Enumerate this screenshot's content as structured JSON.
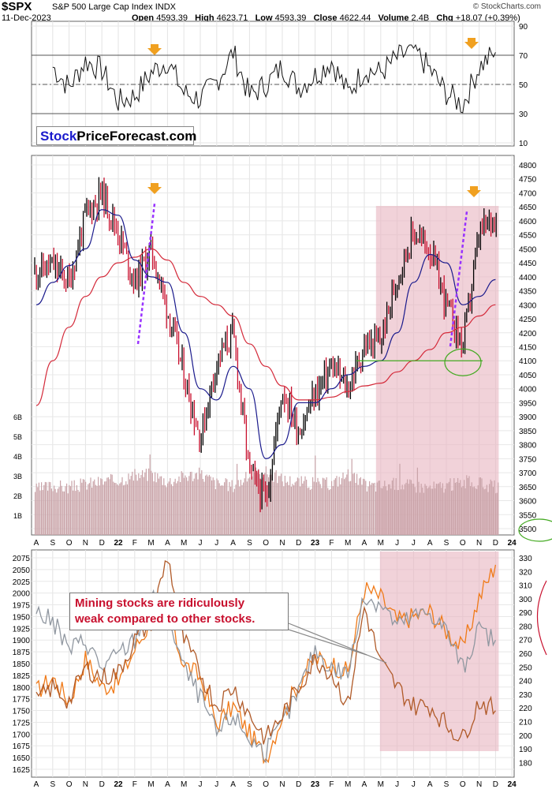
{
  "header": {
    "ticker": "$SPX",
    "name": "S&P 500 Large Cap Index",
    "exchange": "INDX",
    "date": "11-Dec-2023",
    "open_label": "Open",
    "open": "4593.39",
    "high_label": "High",
    "high": "4623.71",
    "low_label": "Low",
    "low": "4593.39",
    "close_label": "Close",
    "close": "4622.44",
    "volume_label": "Volume",
    "volume": "2.4B",
    "chg_label": "Chg",
    "chg": "+18.07 (+0.39%)",
    "watermark": "© StockCharts.com"
  },
  "logo": {
    "part1": "Stock",
    "part2": "PriceForecast.com"
  },
  "annotation": {
    "line1": "Mining stocks are ridiculously",
    "line2": "weak compared to other stocks."
  },
  "colors": {
    "price_up": "#000000",
    "price_down": "#c8102e",
    "ma50": "#1a1a8c",
    "ma200": "#d42a3a",
    "volume": "#c9a3a8",
    "highlight": "#e8b4c0",
    "arrow": "#f0a020",
    "trend": "#9933ff",
    "support": "#44aa22",
    "bottom_orange": "#f07a18",
    "bottom_brown": "#b05a28",
    "bottom_gray": "#9097a0"
  },
  "chart_data": [
    {
      "type": "line",
      "name": "RSI",
      "y_ticks": [
        "90",
        "70",
        "50",
        "30",
        "10"
      ],
      "ylim": [
        0,
        100
      ],
      "reference_lines": [
        70,
        50,
        30
      ],
      "x": [
        "2021-09",
        "2021-10",
        "2021-11",
        "2021-12",
        "2022-01",
        "2022-02",
        "2022-03",
        "2022-04",
        "2022-05",
        "2022-06",
        "2022-07",
        "2022-08",
        "2022-09",
        "2022-10",
        "2022-11",
        "2022-12",
        "2023-01",
        "2023-02",
        "2023-03",
        "2023-04",
        "2023-05",
        "2023-06",
        "2023-07",
        "2023-08",
        "2023-09",
        "2023-10",
        "2023-11",
        "2023-12"
      ],
      "values": [
        62,
        48,
        66,
        60,
        38,
        42,
        58,
        66,
        44,
        40,
        52,
        72,
        42,
        50,
        62,
        48,
        56,
        66,
        44,
        60,
        58,
        68,
        74,
        60,
        44,
        36,
        62,
        72
      ]
    },
    {
      "type": "bar",
      "name": "S&P 500 price & volume",
      "y_ticks": [
        "4800",
        "4750",
        "4700",
        "4650",
        "4600",
        "4550",
        "4500",
        "4450",
        "4400",
        "4350",
        "4300",
        "4250",
        "4200",
        "4150",
        "4100",
        "4050",
        "4000",
        "3950",
        "3900",
        "3850",
        "3800",
        "3750",
        "3700",
        "3650",
        "3600",
        "3550",
        "3500"
      ],
      "volume_ticks": [
        "6B",
        "5B",
        "4B",
        "3B",
        "2B",
        "1B"
      ],
      "ylim": [
        3500,
        4800
      ],
      "x_ticks": [
        "A",
        "S",
        "O",
        "N",
        "D",
        "22",
        "F",
        "M",
        "A",
        "M",
        "J",
        "J",
        "A",
        "S",
        "O",
        "N",
        "D",
        "23",
        "F",
        "M",
        "A",
        "M",
        "J",
        "J",
        "A",
        "S",
        "O",
        "N",
        "D",
        "24"
      ],
      "x": [
        "2021-08",
        "2021-09",
        "2021-10",
        "2021-11",
        "2021-12",
        "2022-01",
        "2022-02",
        "2022-03",
        "2022-04",
        "2022-05",
        "2022-06",
        "2022-07",
        "2022-08",
        "2022-09",
        "2022-10",
        "2022-11",
        "2022-12",
        "2023-01",
        "2023-02",
        "2023-03",
        "2023-04",
        "2023-05",
        "2023-06",
        "2023-07",
        "2023-08",
        "2023-09",
        "2023-10",
        "2023-11",
        "2023-12"
      ],
      "close": [
        4420,
        4440,
        4380,
        4620,
        4700,
        4560,
        4380,
        4500,
        4280,
        4050,
        3820,
        4100,
        4200,
        3700,
        3600,
        4000,
        3850,
        3980,
        4080,
        4000,
        4150,
        4170,
        4400,
        4560,
        4500,
        4300,
        4150,
        4550,
        4622
      ],
      "ma50": [
        4300,
        4380,
        4440,
        4500,
        4640,
        4620,
        4460,
        4400,
        4380,
        4200,
        4000,
        3960,
        4080,
        4000,
        3750,
        3800,
        3950,
        3950,
        4000,
        4050,
        4080,
        4100,
        4200,
        4380,
        4480,
        4450,
        4300,
        4330,
        4390
      ],
      "ma200": [
        3940,
        4100,
        4220,
        4330,
        4400,
        4450,
        4470,
        4500,
        4460,
        4380,
        4330,
        4300,
        4260,
        4160,
        4080,
        4010,
        3960,
        3960,
        3970,
        3990,
        4010,
        4020,
        4060,
        4100,
        4140,
        4200,
        4220,
        4260,
        4300
      ],
      "volume_bn": [
        2.3,
        2.5,
        2.4,
        2.6,
        2.7,
        2.8,
        3.0,
        3.1,
        2.7,
        3.0,
        3.1,
        2.6,
        2.5,
        3.0,
        3.2,
        2.8,
        2.7,
        2.6,
        2.6,
        3.1,
        2.5,
        2.5,
        2.6,
        2.5,
        2.4,
        2.5,
        2.7,
        2.6,
        2.4
      ],
      "support_level": 4100
    },
    {
      "type": "line",
      "name": "Mining stocks comparison",
      "left_ticks": [
        "2075",
        "2050",
        "2025",
        "2000",
        "1975",
        "1950",
        "1925",
        "1900",
        "1875",
        "1850",
        "1825",
        "1800",
        "1775",
        "1750",
        "1725",
        "1700",
        "1675",
        "1650",
        "1625"
      ],
      "right_ticks": [
        "330",
        "320",
        "310",
        "300",
        "290",
        "280",
        "270",
        "260",
        "250",
        "240",
        "230",
        "220",
        "210",
        "200",
        "190",
        "180"
      ],
      "ylim_left": [
        1625,
        2075
      ],
      "ylim_right": [
        175,
        330
      ],
      "x_ticks": [
        "A",
        "S",
        "O",
        "N",
        "D",
        "22",
        "F",
        "M",
        "A",
        "M",
        "J",
        "J",
        "A",
        "S",
        "O",
        "N",
        "D",
        "23",
        "F",
        "M",
        "A",
        "M",
        "J",
        "J",
        "A",
        "S",
        "O",
        "N",
        "D",
        "24"
      ],
      "x": [
        "2021-08",
        "2021-09",
        "2021-10",
        "2021-11",
        "2021-12",
        "2022-01",
        "2022-02",
        "2022-03",
        "2022-04",
        "2022-05",
        "2022-06",
        "2022-07",
        "2022-08",
        "2022-09",
        "2022-10",
        "2022-11",
        "2022-12",
        "2023-01",
        "2023-02",
        "2023-03",
        "2023-04",
        "2023-05",
        "2023-06",
        "2023-07",
        "2023-08",
        "2023-09",
        "2023-10",
        "2023-11",
        "2023-12"
      ],
      "series": [
        {
          "values": [
            1790,
            1820,
            1770,
            1860,
            1800,
            1810,
            1880,
            1940,
            1950,
            1850,
            1820,
            1720,
            1760,
            1700,
            1650,
            1740,
            1810,
            1860,
            1850,
            1830,
            2010,
            1990,
            1940,
            1950,
            1960,
            1920,
            1880,
            1990,
            2060
          ]
        },
        {
          "values": [
            1960,
            1940,
            1880,
            1900,
            1840,
            1870,
            1900,
            1990,
            1960,
            1840,
            1780,
            1700,
            1740,
            1690,
            1660,
            1720,
            1790,
            1880,
            1840,
            1830,
            1990,
            1980,
            1930,
            1950,
            1960,
            1920,
            1840,
            1920,
            1900
          ]
        },
        {
          "values": [
            1770,
            1800,
            1770,
            1840,
            1820,
            1830,
            1900,
            1940,
            2080,
            1900,
            1830,
            1760,
            1800,
            1740,
            1690,
            1740,
            1800,
            1860,
            1830,
            1760,
            1970,
            1850,
            1800,
            1760,
            1760,
            1720,
            1690,
            1770,
            1750
          ]
        }
      ]
    }
  ]
}
